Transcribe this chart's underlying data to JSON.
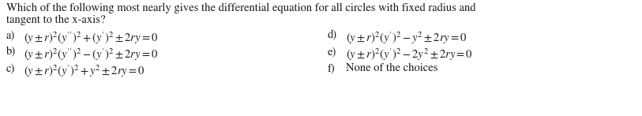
{
  "title_line1": "Which of the following most nearly gives the differential equation for all circles with fixed radius and",
  "title_line2": "tangent to the x-axis?",
  "options_left": [
    {
      "label": "a)",
      "formula": "$(y\\pm r)^2(y^{\\prime\\prime})^2 + (y^{\\prime})^2 \\pm 2ry = 0$"
    },
    {
      "label": "b)",
      "formula": "$(y\\pm r)^2(y^{\\prime\\prime})^2 - (y^{\\prime})^2 \\pm 2ry = 0$"
    },
    {
      "label": "c)",
      "formula": "$(y\\pm r)^2(y^{\\prime})^2 + y^2 \\pm 2ry = 0$"
    }
  ],
  "options_right": [
    {
      "label": "d)",
      "formula": "$(y\\pm r)^2(y^{\\prime})^2 - y^2 \\pm 2ry = 0$"
    },
    {
      "label": "e)",
      "formula": "$(y\\pm r)^2(y^{\\prime})^2 - 2y^2 \\pm 2ry = 0$"
    },
    {
      "label": "f)",
      "formula": "None of the choices"
    }
  ],
  "background_color": "#ffffff",
  "text_color": "#1a1a1a",
  "font_size": 10.5,
  "fig_width": 8.13,
  "fig_height": 1.47,
  "dpi": 100
}
